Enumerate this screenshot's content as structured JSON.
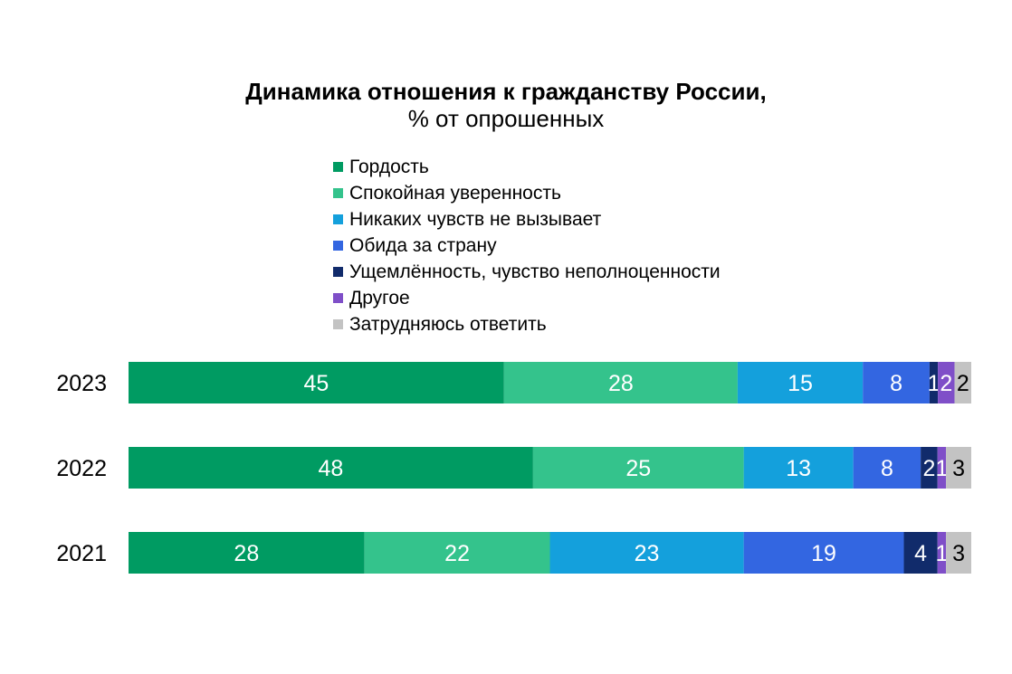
{
  "chart_data": {
    "type": "bar",
    "orientation": "horizontal",
    "stacked": true,
    "title": "Динамика отношения к гражданству России,",
    "subtitle": "% от опрошенных",
    "categories": [
      "2023",
      "2022",
      "2021"
    ],
    "legend_position": "top",
    "grid": false,
    "series": [
      {
        "name": "Гордость",
        "color": "#009B62",
        "label_color": "#ffffff",
        "values": [
          45,
          48,
          28
        ]
      },
      {
        "name": "Спокойная уверенность",
        "color": "#34C38C",
        "label_color": "#ffffff",
        "values": [
          28,
          25,
          22
        ]
      },
      {
        "name": "Никаких чувств не вызывает",
        "color": "#14A0DC",
        "label_color": "#ffffff",
        "values": [
          15,
          13,
          23
        ]
      },
      {
        "name": "Обида за страну",
        "color": "#3366E1",
        "label_color": "#ffffff",
        "values": [
          8,
          8,
          19
        ]
      },
      {
        "name": "Ущемлённость, чувство неполноценности",
        "color": "#112B6B",
        "label_color": "#ffffff",
        "values": [
          1,
          2,
          4
        ]
      },
      {
        "name": "Другое",
        "color": "#7F4FC8",
        "label_color": "#ffffff",
        "values": [
          2,
          1,
          1
        ]
      },
      {
        "name": "Затрудняюсь ответить",
        "color": "#C3C3C3",
        "label_color": "#000000",
        "values": [
          2,
          3,
          3
        ]
      }
    ]
  }
}
